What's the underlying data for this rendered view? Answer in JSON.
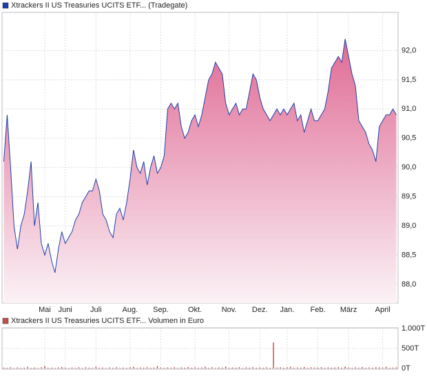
{
  "chart_data": [
    {
      "type": "area",
      "series": [
        {
          "name": "Xtrackers II US Treasuries UCITS ETF... (Tradegate)",
          "color": "#1f3fa8",
          "values": [
            90.1,
            90.9,
            90.0,
            89.0,
            88.6,
            89.0,
            89.2,
            89.6,
            90.1,
            89.0,
            89.4,
            88.7,
            88.5,
            88.7,
            88.4,
            88.2,
            88.6,
            88.9,
            88.7,
            88.8,
            88.9,
            89.1,
            89.2,
            89.4,
            89.5,
            89.6,
            89.6,
            89.8,
            89.6,
            89.2,
            89.1,
            88.9,
            88.8,
            89.2,
            89.3,
            89.1,
            89.4,
            89.8,
            90.3,
            90.0,
            89.9,
            90.1,
            89.7,
            90.0,
            90.2,
            89.9,
            90.0,
            90.2,
            91.0,
            91.1,
            91.0,
            91.1,
            90.7,
            90.5,
            90.6,
            90.8,
            90.9,
            90.7,
            90.9,
            91.2,
            91.5,
            91.6,
            91.8,
            91.7,
            91.6,
            91.1,
            90.9,
            91.0,
            91.1,
            90.9,
            91.0,
            91.0,
            91.3,
            91.6,
            91.5,
            91.2,
            91.0,
            90.9,
            90.8,
            90.9,
            91.0,
            90.9,
            91.0,
            90.9,
            91.0,
            91.1,
            90.8,
            90.9,
            90.6,
            90.8,
            91.0,
            90.8,
            90.8,
            90.9,
            91.0,
            91.3,
            91.7,
            91.8,
            91.9,
            91.8,
            92.2,
            91.9,
            91.6,
            91.4,
            90.8,
            90.7,
            90.6,
            90.4,
            90.3,
            90.1,
            90.7,
            90.8,
            90.9,
            90.9,
            91.0,
            90.9
          ]
        }
      ],
      "categories": [
        null,
        null,
        null,
        null,
        null,
        null,
        null,
        null,
        null,
        null,
        null,
        null,
        "Mai",
        null,
        null,
        null,
        null,
        null,
        "Juni",
        null,
        null,
        null,
        null,
        null,
        null,
        null,
        null,
        "Juli",
        null,
        null,
        null,
        null,
        null,
        null,
        null,
        null,
        null,
        "Aug.",
        null,
        null,
        null,
        null,
        null,
        null,
        null,
        null,
        "Sep.",
        null,
        null,
        null,
        null,
        null,
        null,
        null,
        null,
        null,
        "Okt.",
        null,
        null,
        null,
        null,
        null,
        null,
        null,
        null,
        null,
        "Nov.",
        null,
        null,
        null,
        null,
        null,
        null,
        null,
        null,
        "Dez.",
        null,
        null,
        null,
        null,
        null,
        null,
        null,
        "Jan.",
        null,
        null,
        null,
        null,
        null,
        null,
        null,
        null,
        "Feb.",
        null,
        null,
        null,
        null,
        null,
        null,
        null,
        null,
        "März",
        null,
        null,
        null,
        null,
        null,
        null,
        null,
        null,
        null,
        "April",
        null,
        null,
        null,
        null
      ],
      "ylim": [
        87.68,
        92.63
      ],
      "yticks": [
        {
          "value": 88.0,
          "label": "88,0"
        },
        {
          "value": 88.5,
          "label": "88,5"
        },
        {
          "value": 89.0,
          "label": "89,0"
        },
        {
          "value": 89.5,
          "label": "89,5"
        },
        {
          "value": 90.0,
          "label": "90,0"
        },
        {
          "value": 90.5,
          "label": "90,5"
        },
        {
          "value": 91.0,
          "label": "91,0"
        },
        {
          "value": 91.5,
          "label": "91,5"
        },
        {
          "value": 92.0,
          "label": "92,0"
        }
      ],
      "grid": true
    },
    {
      "type": "bar",
      "series": [
        {
          "name": "Xtrackers II US Treasuries UCITS ETF... Volumen in Euro",
          "color": "#c0504d",
          "values": [
            20,
            15,
            30,
            10,
            25,
            12,
            18,
            40,
            15,
            22,
            10,
            30,
            60,
            15,
            20,
            12,
            25,
            35,
            18,
            10,
            22,
            15,
            28,
            12,
            30,
            20,
            14,
            45,
            16,
            22,
            10,
            25,
            18,
            30,
            12,
            20,
            15,
            28,
            40,
            12,
            24,
            18,
            30,
            15,
            22,
            60,
            20,
            14,
            26,
            18,
            30,
            12,
            25,
            20,
            35,
            15,
            28,
            18,
            22,
            40,
            16,
            30,
            12,
            24,
            20,
            50,
            15,
            22,
            18,
            30,
            14,
            26,
            20,
            32,
            16,
            24,
            18,
            28,
            15,
            650,
            22,
            30,
            18,
            26,
            40,
            16,
            24,
            20,
            35,
            14,
            28,
            22,
            18,
            30,
            16,
            26,
            20,
            24,
            32,
            18,
            45,
            22,
            16,
            28,
            20,
            36,
            14,
            24,
            18,
            30,
            26,
            20,
            40,
            16,
            22,
            28
          ]
        }
      ],
      "ylim": [
        0,
        1000
      ],
      "yticks": [
        {
          "value": 0,
          "label": "0T"
        },
        {
          "value": 500,
          "label": "500T"
        },
        {
          "value": 1000,
          "label": "1.000T"
        }
      ],
      "grid": true
    }
  ]
}
